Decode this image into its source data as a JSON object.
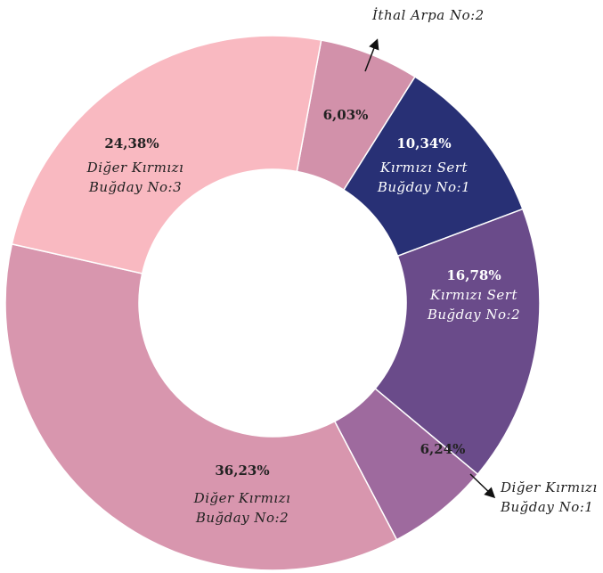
{
  "chart_data": {
    "type": "donut",
    "categories": [
      "İthal Arpa No:2",
      "Kırmızı Sert Buğday No:1",
      "Kırmızı Sert Buğday No:2",
      "Diğer Kırmızı Buğday No:1",
      "Diğer Kırmızı Buğday No:2",
      "Diğer Kırmızı Buğday No:3"
    ],
    "values": [
      6.03,
      10.34,
      16.78,
      6.24,
      36.23,
      24.38
    ],
    "value_labels": [
      "6,03%",
      "10,34%",
      "16,78%",
      "6,24%",
      "36,23%",
      "24,38%"
    ],
    "colors": [
      "#d291aa",
      "#283075",
      "#6a4b8a",
      "#9e6a9e",
      "#d896ae",
      "#f9b9c1"
    ]
  }
}
